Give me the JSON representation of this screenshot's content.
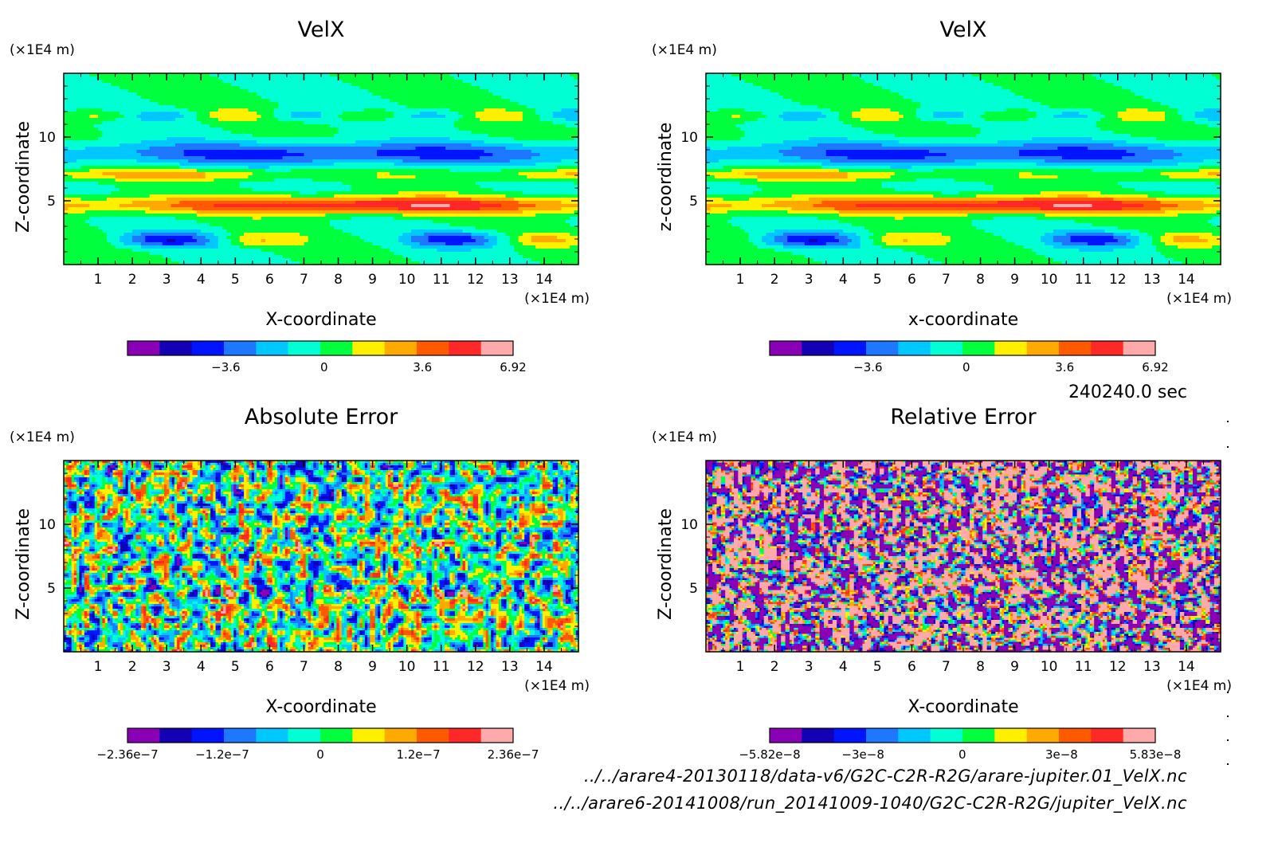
{
  "timestamp": "240240.0 sec",
  "footer": {
    "line1": "../../arare4-20130118/data-v6/G2C-C2R-R2G/arare-jupiter.01_VelX.nc",
    "line2": "../../arare6-20141008/run_20141009-1040/G2C-C2R-R2G/jupiter_VelX.nc"
  },
  "colormap": [
    "#8a00b4",
    "#1400b4",
    "#0014ff",
    "#1e78ff",
    "#00c8ff",
    "#00ffd2",
    "#00ff3c",
    "#fff000",
    "#ffaa00",
    "#ff5a00",
    "#ff2828",
    "#ff4646",
    "#ffaaaa"
  ],
  "chart_data": [
    {
      "type": "heatmap",
      "title": "VelX",
      "xlabel": "X-coordinate",
      "ylabel": "Z-coordinate",
      "x_unit": "(×1E4 m)",
      "y_unit": "(×1E4 m)",
      "xlim": [
        0,
        15
      ],
      "ylim": [
        0,
        15
      ],
      "x_ticks": [
        "1",
        "2",
        "3",
        "4",
        "5",
        "6",
        "7",
        "8",
        "9",
        "10",
        "11",
        "12",
        "13",
        "14"
      ],
      "y_ticks": [
        "5",
        "10"
      ],
      "colorbar": {
        "levels": 12,
        "labels": [
          {
            "value": -3.6,
            "text": "−3.6"
          },
          {
            "value": 0,
            "text": "0"
          },
          {
            "value": 3.6,
            "text": "3.6"
          },
          {
            "value": 6.92,
            "text": "6.92"
          }
        ],
        "range": [
          -7.2,
          6.92
        ]
      },
      "field": "jet"
    },
    {
      "type": "heatmap",
      "title": "VelX",
      "xlabel": "x-coordinate",
      "ylabel": "z-coordinate",
      "x_unit": "(×1E4 m)",
      "y_unit": "(×1E4 m)",
      "xlim": [
        0,
        15
      ],
      "ylim": [
        0,
        15
      ],
      "x_ticks": [
        "1",
        "2",
        "3",
        "4",
        "5",
        "6",
        "7",
        "8",
        "9",
        "10",
        "11",
        "12",
        "13",
        "14"
      ],
      "y_ticks": [
        "5",
        "10"
      ],
      "colorbar": {
        "levels": 12,
        "labels": [
          {
            "value": -3.6,
            "text": "−3.6"
          },
          {
            "value": 0,
            "text": "0"
          },
          {
            "value": 3.6,
            "text": "3.6"
          },
          {
            "value": 6.92,
            "text": "6.92"
          }
        ],
        "range": [
          -7.2,
          6.92
        ]
      },
      "field": "jet"
    },
    {
      "type": "heatmap",
      "title": "Absolute Error",
      "xlabel": "X-coordinate",
      "ylabel": "Z-coordinate",
      "x_unit": "(×1E4 m)",
      "y_unit": "(×1E4 m)",
      "xlim": [
        0,
        15
      ],
      "ylim": [
        0,
        15
      ],
      "x_ticks": [
        "1",
        "2",
        "3",
        "4",
        "5",
        "6",
        "7",
        "8",
        "9",
        "10",
        "11",
        "12",
        "13",
        "14"
      ],
      "y_ticks": [
        "5",
        "10"
      ],
      "colorbar": {
        "levels": 12,
        "labels": [
          {
            "value": -2.36e-07,
            "text": "−2.36e−7"
          },
          {
            "value": -1.2e-07,
            "text": "−1.2e−7"
          },
          {
            "value": 0,
            "text": "0"
          },
          {
            "value": 1.2e-07,
            "text": "1.2e−7"
          },
          {
            "value": 2.36e-07,
            "text": "2.36e−7"
          }
        ],
        "range": [
          -2.36e-07,
          2.36e-07
        ]
      },
      "field": "abs_noise"
    },
    {
      "type": "heatmap",
      "title": "Relative Error",
      "xlabel": "X-coordinate",
      "ylabel": "Z-coordinate",
      "x_unit": "(×1E4 m)",
      "y_unit": "(×1E4 m)",
      "xlim": [
        0,
        15
      ],
      "ylim": [
        0,
        15
      ],
      "x_ticks": [
        "1",
        "2",
        "3",
        "4",
        "5",
        "6",
        "7",
        "8",
        "9",
        "10",
        "11",
        "12",
        "13",
        "14"
      ],
      "y_ticks": [
        "5",
        "10"
      ],
      "colorbar": {
        "levels": 12,
        "labels": [
          {
            "value": -5.82e-08,
            "text": "−5.82e−8"
          },
          {
            "value": -3e-08,
            "text": "−3e−8"
          },
          {
            "value": 0,
            "text": "0"
          },
          {
            "value": 3e-08,
            "text": "3e−8"
          },
          {
            "value": 5.83e-08,
            "text": "5.83e−8"
          }
        ],
        "range": [
          -5.82e-08,
          5.83e-08
        ]
      },
      "field": "rel_noise"
    }
  ]
}
